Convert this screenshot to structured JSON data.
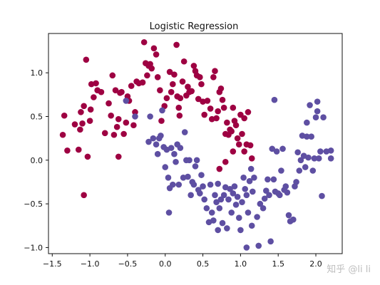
{
  "chart_data": {
    "type": "scatter",
    "title": "Logistic Regression",
    "xlabel": "",
    "ylabel": "",
    "xlim": [
      -1.55,
      2.35
    ],
    "ylim": [
      -1.07,
      1.45
    ],
    "xticks": [
      -1.5,
      -1.0,
      -0.5,
      0.0,
      0.5,
      1.0,
      1.5,
      2.0
    ],
    "xtick_labels": [
      "−1.5",
      "−1.0",
      "−0.5",
      "0.0",
      "0.5",
      "1.0",
      "1.5",
      "2.0"
    ],
    "yticks": [
      -1.0,
      -0.5,
      0.0,
      0.5,
      1.0
    ],
    "ytick_labels": [
      "−1.0",
      "−0.5",
      "0.0",
      "0.5",
      "1.0"
    ],
    "grid": false,
    "watermark": "知乎 @li li",
    "colors": {
      "red": "#9e0142",
      "blue": "#5e4fa2",
      "text": "#111111",
      "watermark": "#bdbdbd"
    },
    "series": [
      {
        "color": "#9e0142",
        "points": [
          [
            -1.36,
            0.29
          ],
          [
            -1.34,
            0.51
          ],
          [
            -1.3,
            0.11
          ],
          [
            -1.2,
            0.41
          ],
          [
            -1.15,
            0.12
          ],
          [
            -1.13,
            0.35
          ],
          [
            -1.12,
            0.55
          ],
          [
            -1.1,
            0.42
          ],
          [
            -1.08,
            0.62
          ],
          [
            -1.05,
            1.15
          ],
          [
            -1.03,
            0.04
          ],
          [
            -1.0,
            0.45
          ],
          [
            -0.99,
            0.58
          ],
          [
            -0.98,
            0.87
          ],
          [
            -0.95,
            0.72
          ],
          [
            -0.92,
            0.88
          ],
          [
            -0.9,
            0.8
          ],
          [
            -0.85,
            0.78
          ],
          [
            -0.8,
            0.31
          ],
          [
            -0.75,
            0.65
          ],
          [
            -0.72,
            0.51
          ],
          [
            -0.7,
            0.97
          ],
          [
            -0.68,
            0.29
          ],
          [
            -0.66,
            0.8
          ],
          [
            -0.64,
            0.38
          ],
          [
            -0.62,
            0.47
          ],
          [
            -0.6,
            0.77
          ],
          [
            -0.58,
            0.78
          ],
          [
            -0.55,
            0.3
          ],
          [
            -0.52,
            0.43
          ],
          [
            -0.5,
            0.73
          ],
          [
            -0.48,
            0.68
          ],
          [
            -0.45,
            0.85
          ],
          [
            -0.42,
            0.4
          ],
          [
            -0.4,
            0.55
          ],
          [
            -0.38,
            0.9
          ],
          [
            -0.35,
            0.88
          ],
          [
            -0.3,
            0.89
          ],
          [
            -0.28,
            1.35
          ],
          [
            -0.26,
            1.11
          ],
          [
            -0.24,
            0.97
          ],
          [
            -0.22,
            1.08
          ],
          [
            -0.2,
            1.1
          ],
          [
            -0.18,
            1.05
          ],
          [
            -0.15,
            1.28
          ],
          [
            -0.12,
            1.21
          ],
          [
            -0.1,
            0.95
          ],
          [
            -0.07,
            0.8
          ],
          [
            -0.05,
            0.45
          ],
          [
            -0.01,
            0.62
          ],
          [
            0.02,
            0.71
          ],
          [
            0.06,
            1.01
          ],
          [
            0.08,
            0.78
          ],
          [
            0.1,
            0.87
          ],
          [
            0.12,
            0.98
          ],
          [
            0.15,
            1.32
          ],
          [
            0.16,
            0.73
          ],
          [
            0.18,
            0.6
          ],
          [
            0.19,
            0.51
          ],
          [
            0.2,
            0.71
          ],
          [
            0.23,
            0.9
          ],
          [
            0.25,
            1.13
          ],
          [
            0.28,
            0.74
          ],
          [
            0.3,
            0.84
          ],
          [
            0.32,
            0.78
          ],
          [
            0.35,
            0.79
          ],
          [
            0.38,
            1.08
          ],
          [
            0.4,
            1.02
          ],
          [
            0.42,
            0.97
          ],
          [
            0.44,
            0.7
          ],
          [
            0.46,
            0.95
          ],
          [
            0.48,
            0.87
          ],
          [
            0.5,
            0.67
          ],
          [
            0.52,
            0.52
          ],
          [
            0.56,
            0.68
          ],
          [
            0.6,
            0.59
          ],
          [
            0.62,
            0.47
          ],
          [
            0.64,
            0.95
          ],
          [
            0.66,
            1.02
          ],
          [
            0.68,
            0.48
          ],
          [
            0.7,
            0.56
          ],
          [
            0.72,
            0.78
          ],
          [
            0.74,
            0.82
          ],
          [
            0.76,
            0.69
          ],
          [
            0.78,
            0.6
          ],
          [
            0.8,
            0.3
          ],
          [
            0.82,
            0.43
          ],
          [
            0.84,
            0.29
          ],
          [
            0.86,
            0.35
          ],
          [
            0.88,
            0.33
          ],
          [
            0.9,
            0.6
          ],
          [
            0.92,
            0.45
          ],
          [
            0.94,
            0.4
          ],
          [
            0.96,
            0.25
          ],
          [
            0.98,
            0.18
          ],
          [
            1.0,
            0.52
          ],
          [
            1.02,
            0.3
          ],
          [
            1.05,
            0.48
          ],
          [
            1.08,
            0.18
          ],
          [
            1.1,
            0.55
          ],
          [
            1.13,
            0.17
          ],
          [
            1.15,
            0.02
          ],
          [
            0.72,
            -0.1
          ],
          [
            0.8,
            -0.02
          ],
          [
            0.9,
            0.1
          ],
          [
            1.05,
            0.1
          ],
          [
            -1.08,
            -0.4
          ],
          [
            -0.62,
            0.04
          ]
        ]
      },
      {
        "color": "#5e4fa2",
        "points": [
          [
            -0.52,
            0.68
          ],
          [
            -0.4,
            0.5
          ],
          [
            -0.2,
            0.5
          ],
          [
            -0.22,
            0.21
          ],
          [
            -0.16,
            0.25
          ],
          [
            -0.12,
            0.18
          ],
          [
            -0.1,
            0.07
          ],
          [
            -0.08,
            0.25
          ],
          [
            -0.06,
            0.28
          ],
          [
            -0.04,
            0.57
          ],
          [
            -0.02,
            0.15
          ],
          [
            0.0,
            -0.08
          ],
          [
            0.02,
            0.12
          ],
          [
            0.04,
            -0.2
          ],
          [
            0.06,
            -0.32
          ],
          [
            0.08,
            0.14
          ],
          [
            0.1,
            -0.28
          ],
          [
            0.12,
            0.07
          ],
          [
            0.14,
            -0.02
          ],
          [
            0.16,
            0.18
          ],
          [
            0.18,
            -0.28
          ],
          [
            0.2,
            0.14
          ],
          [
            0.24,
            -0.2
          ],
          [
            0.26,
            0.32
          ],
          [
            0.28,
            0.0
          ],
          [
            0.3,
            -0.19
          ],
          [
            0.32,
            0.0
          ],
          [
            0.34,
            -0.4
          ],
          [
            0.36,
            -0.25
          ],
          [
            0.38,
            -0.28
          ],
          [
            0.4,
            -0.07
          ],
          [
            0.42,
            0.0
          ],
          [
            0.44,
            -0.34
          ],
          [
            0.46,
            -0.38
          ],
          [
            0.48,
            -0.17
          ],
          [
            0.5,
            -0.3
          ],
          [
            0.52,
            -0.45
          ],
          [
            0.55,
            -0.55
          ],
          [
            0.58,
            -0.71
          ],
          [
            0.6,
            -0.28
          ],
          [
            0.62,
            -0.6
          ],
          [
            0.64,
            -0.69
          ],
          [
            0.66,
            -0.4
          ],
          [
            0.68,
            -0.48
          ],
          [
            0.7,
            -0.27
          ],
          [
            0.72,
            -0.55
          ],
          [
            0.74,
            -0.45
          ],
          [
            0.76,
            -0.72
          ],
          [
            0.78,
            -0.4
          ],
          [
            0.8,
            -0.31
          ],
          [
            0.82,
            -0.78
          ],
          [
            0.84,
            -0.45
          ],
          [
            0.86,
            -0.33
          ],
          [
            0.88,
            -0.6
          ],
          [
            0.9,
            -0.38
          ],
          [
            0.92,
            -0.3
          ],
          [
            0.94,
            -0.51
          ],
          [
            0.96,
            -0.42
          ],
          [
            0.98,
            -0.66
          ],
          [
            1.0,
            -0.8
          ],
          [
            1.02,
            -0.48
          ],
          [
            1.04,
            -0.2
          ],
          [
            1.06,
            -0.33
          ],
          [
            1.08,
            -0.4
          ],
          [
            1.1,
            -0.6
          ],
          [
            1.12,
            -0.24
          ],
          [
            1.14,
            -0.1
          ],
          [
            1.16,
            -0.36
          ],
          [
            1.18,
            -0.2
          ],
          [
            1.22,
            -0.65
          ],
          [
            1.26,
            -0.5
          ],
          [
            1.3,
            -0.55
          ],
          [
            1.32,
            -0.44
          ],
          [
            1.34,
            -0.35
          ],
          [
            1.36,
            -0.22
          ],
          [
            1.38,
            -0.4
          ],
          [
            1.4,
            -0.93
          ],
          [
            1.42,
            0.13
          ],
          [
            1.44,
            -0.22
          ],
          [
            1.46,
            -0.36
          ],
          [
            1.48,
            0.1
          ],
          [
            1.5,
            -0.38
          ],
          [
            1.52,
            -0.4
          ],
          [
            1.54,
            -0.12
          ],
          [
            1.56,
            0.13
          ],
          [
            1.58,
            -0.34
          ],
          [
            1.6,
            -0.3
          ],
          [
            1.62,
            -0.37
          ],
          [
            1.64,
            -0.63
          ],
          [
            1.66,
            -0.7
          ],
          [
            1.7,
            -0.68
          ],
          [
            1.72,
            -0.3
          ],
          [
            1.74,
            -0.25
          ],
          [
            1.76,
            0.09
          ],
          [
            1.78,
            -0.12
          ],
          [
            1.8,
            0.0
          ],
          [
            1.82,
            0.28
          ],
          [
            1.84,
            0.05
          ],
          [
            1.86,
            -0.08
          ],
          [
            1.88,
            0.27
          ],
          [
            1.9,
            0.03
          ],
          [
            1.92,
            0.63
          ],
          [
            1.94,
            0.27
          ],
          [
            1.96,
            -0.12
          ],
          [
            1.98,
            0.02
          ],
          [
            2.0,
            0.49
          ],
          [
            2.02,
            0.67
          ],
          [
            2.04,
            0.02
          ],
          [
            2.06,
            0.1
          ],
          [
            2.08,
            -0.41
          ],
          [
            2.1,
            0.49
          ],
          [
            2.14,
            0.1
          ],
          [
            2.2,
            0.02
          ],
          [
            1.08,
            -1.0
          ],
          [
            1.24,
            -0.98
          ],
          [
            0.7,
            -0.8
          ],
          [
            0.05,
            -0.6
          ],
          [
            1.15,
            -0.75
          ],
          [
            1.45,
            0.69
          ],
          [
            1.88,
            0.43
          ],
          [
            2.02,
            0.56
          ],
          [
            2.2,
            0.11
          ]
        ]
      }
    ]
  }
}
